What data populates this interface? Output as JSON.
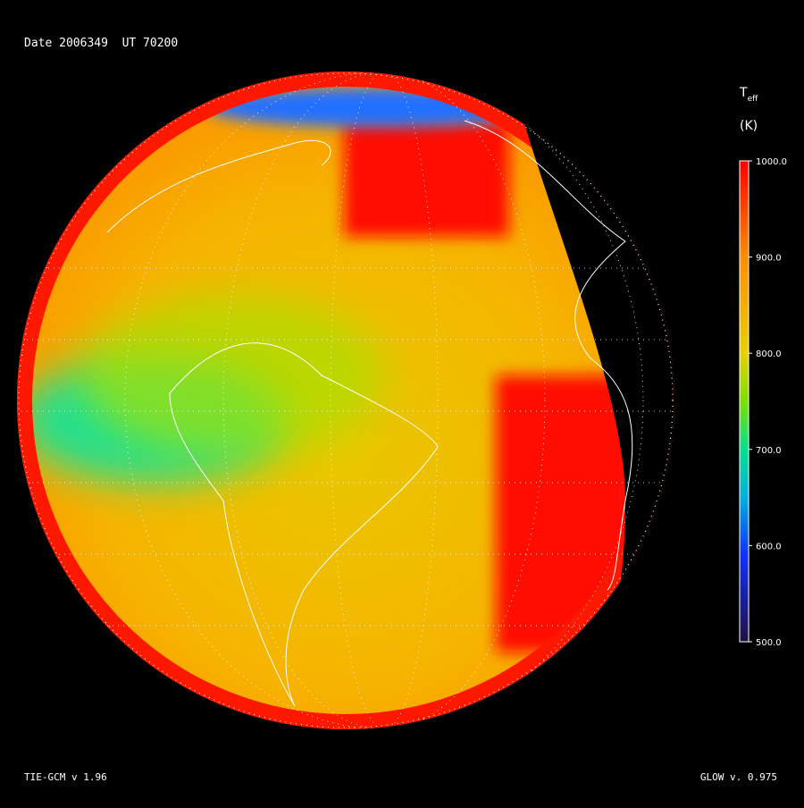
{
  "header": {
    "date_line": "Date 2006349  UT 70200"
  },
  "colorbar": {
    "symbol": "T",
    "subscript": "eff",
    "unit": "(K)",
    "range": [
      500,
      1000
    ],
    "ticks": [
      {
        "value": 1000,
        "label": "1000.0"
      },
      {
        "value": 900,
        "label": "900.0"
      },
      {
        "value": 800,
        "label": "800.0"
      },
      {
        "value": 700,
        "label": "700.0"
      },
      {
        "value": 600,
        "label": "600.0"
      },
      {
        "value": 500,
        "label": "500.0"
      }
    ]
  },
  "footer": {
    "left": "TIE-GCM v 1.96",
    "right": "GLOW v. 0.975"
  }
}
